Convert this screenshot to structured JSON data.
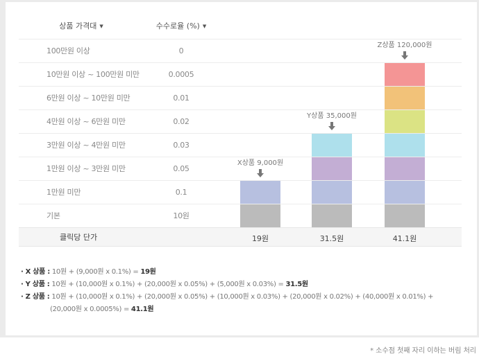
{
  "table": {
    "headers": [
      "상품 가격대",
      "수수로율 (%)"
    ],
    "rows": [
      {
        "range": "100만원 이상",
        "rate": "0"
      },
      {
        "range": "10만원 이상 ~ 100만원 미만",
        "rate": "0.0005"
      },
      {
        "range": "6만원 이상 ~ 10만원 미만",
        "rate": "0.01"
      },
      {
        "range": "4만원 이상 ~ 6만원 미만",
        "rate": "0.02"
      },
      {
        "range": "3만원 이상 ~ 4만원 미만",
        "rate": "0.03"
      },
      {
        "range": "1만원 이상 ~ 3만원 미만",
        "rate": "0.05"
      },
      {
        "range": "1만원 미만",
        "rate": "0.1"
      },
      {
        "range": "기본",
        "rate": "10원"
      }
    ],
    "total_label": "클릭당 단가"
  },
  "segment_colors": [
    "#bbbbbb",
    "#b7c0e0",
    "#c3aed4",
    "#aee0ec",
    "#dbe384",
    "#f2c279",
    "#f49595"
  ],
  "products": [
    {
      "label": "X상품 9,000원",
      "segments": 2,
      "total": "19원"
    },
    {
      "label": "Y상품 35,000원",
      "segments": 4,
      "total": "31.5원"
    },
    {
      "label": "Z상품 120,000원",
      "segments": 7,
      "total": "41.1원"
    }
  ],
  "notes": [
    {
      "name": "· X 상품 :",
      "expr": "10원 + (9,000원 x 0.1%) = ",
      "result": "19원"
    },
    {
      "name": "· Y 상품 :",
      "expr": "10원 + (10,000원 x 0.1%) + (20,000원 x 0.05%) + (5,000원 x 0.03%) = ",
      "result": "31.5원"
    },
    {
      "name": "· Z 상품 :",
      "expr": "10원 + (10,000원 x 0.1%) + (20,000원 x 0.05%) + (10,000원 x 0.03%) + (20,000원 x 0.02%) + (40,000원 x 0.01%) +",
      "expr2": "(20,000원 x 0.0005%) = ",
      "result": "41.1원"
    }
  ],
  "footnote": "* 소수점 첫째 자리 이하는 버림 처리"
}
